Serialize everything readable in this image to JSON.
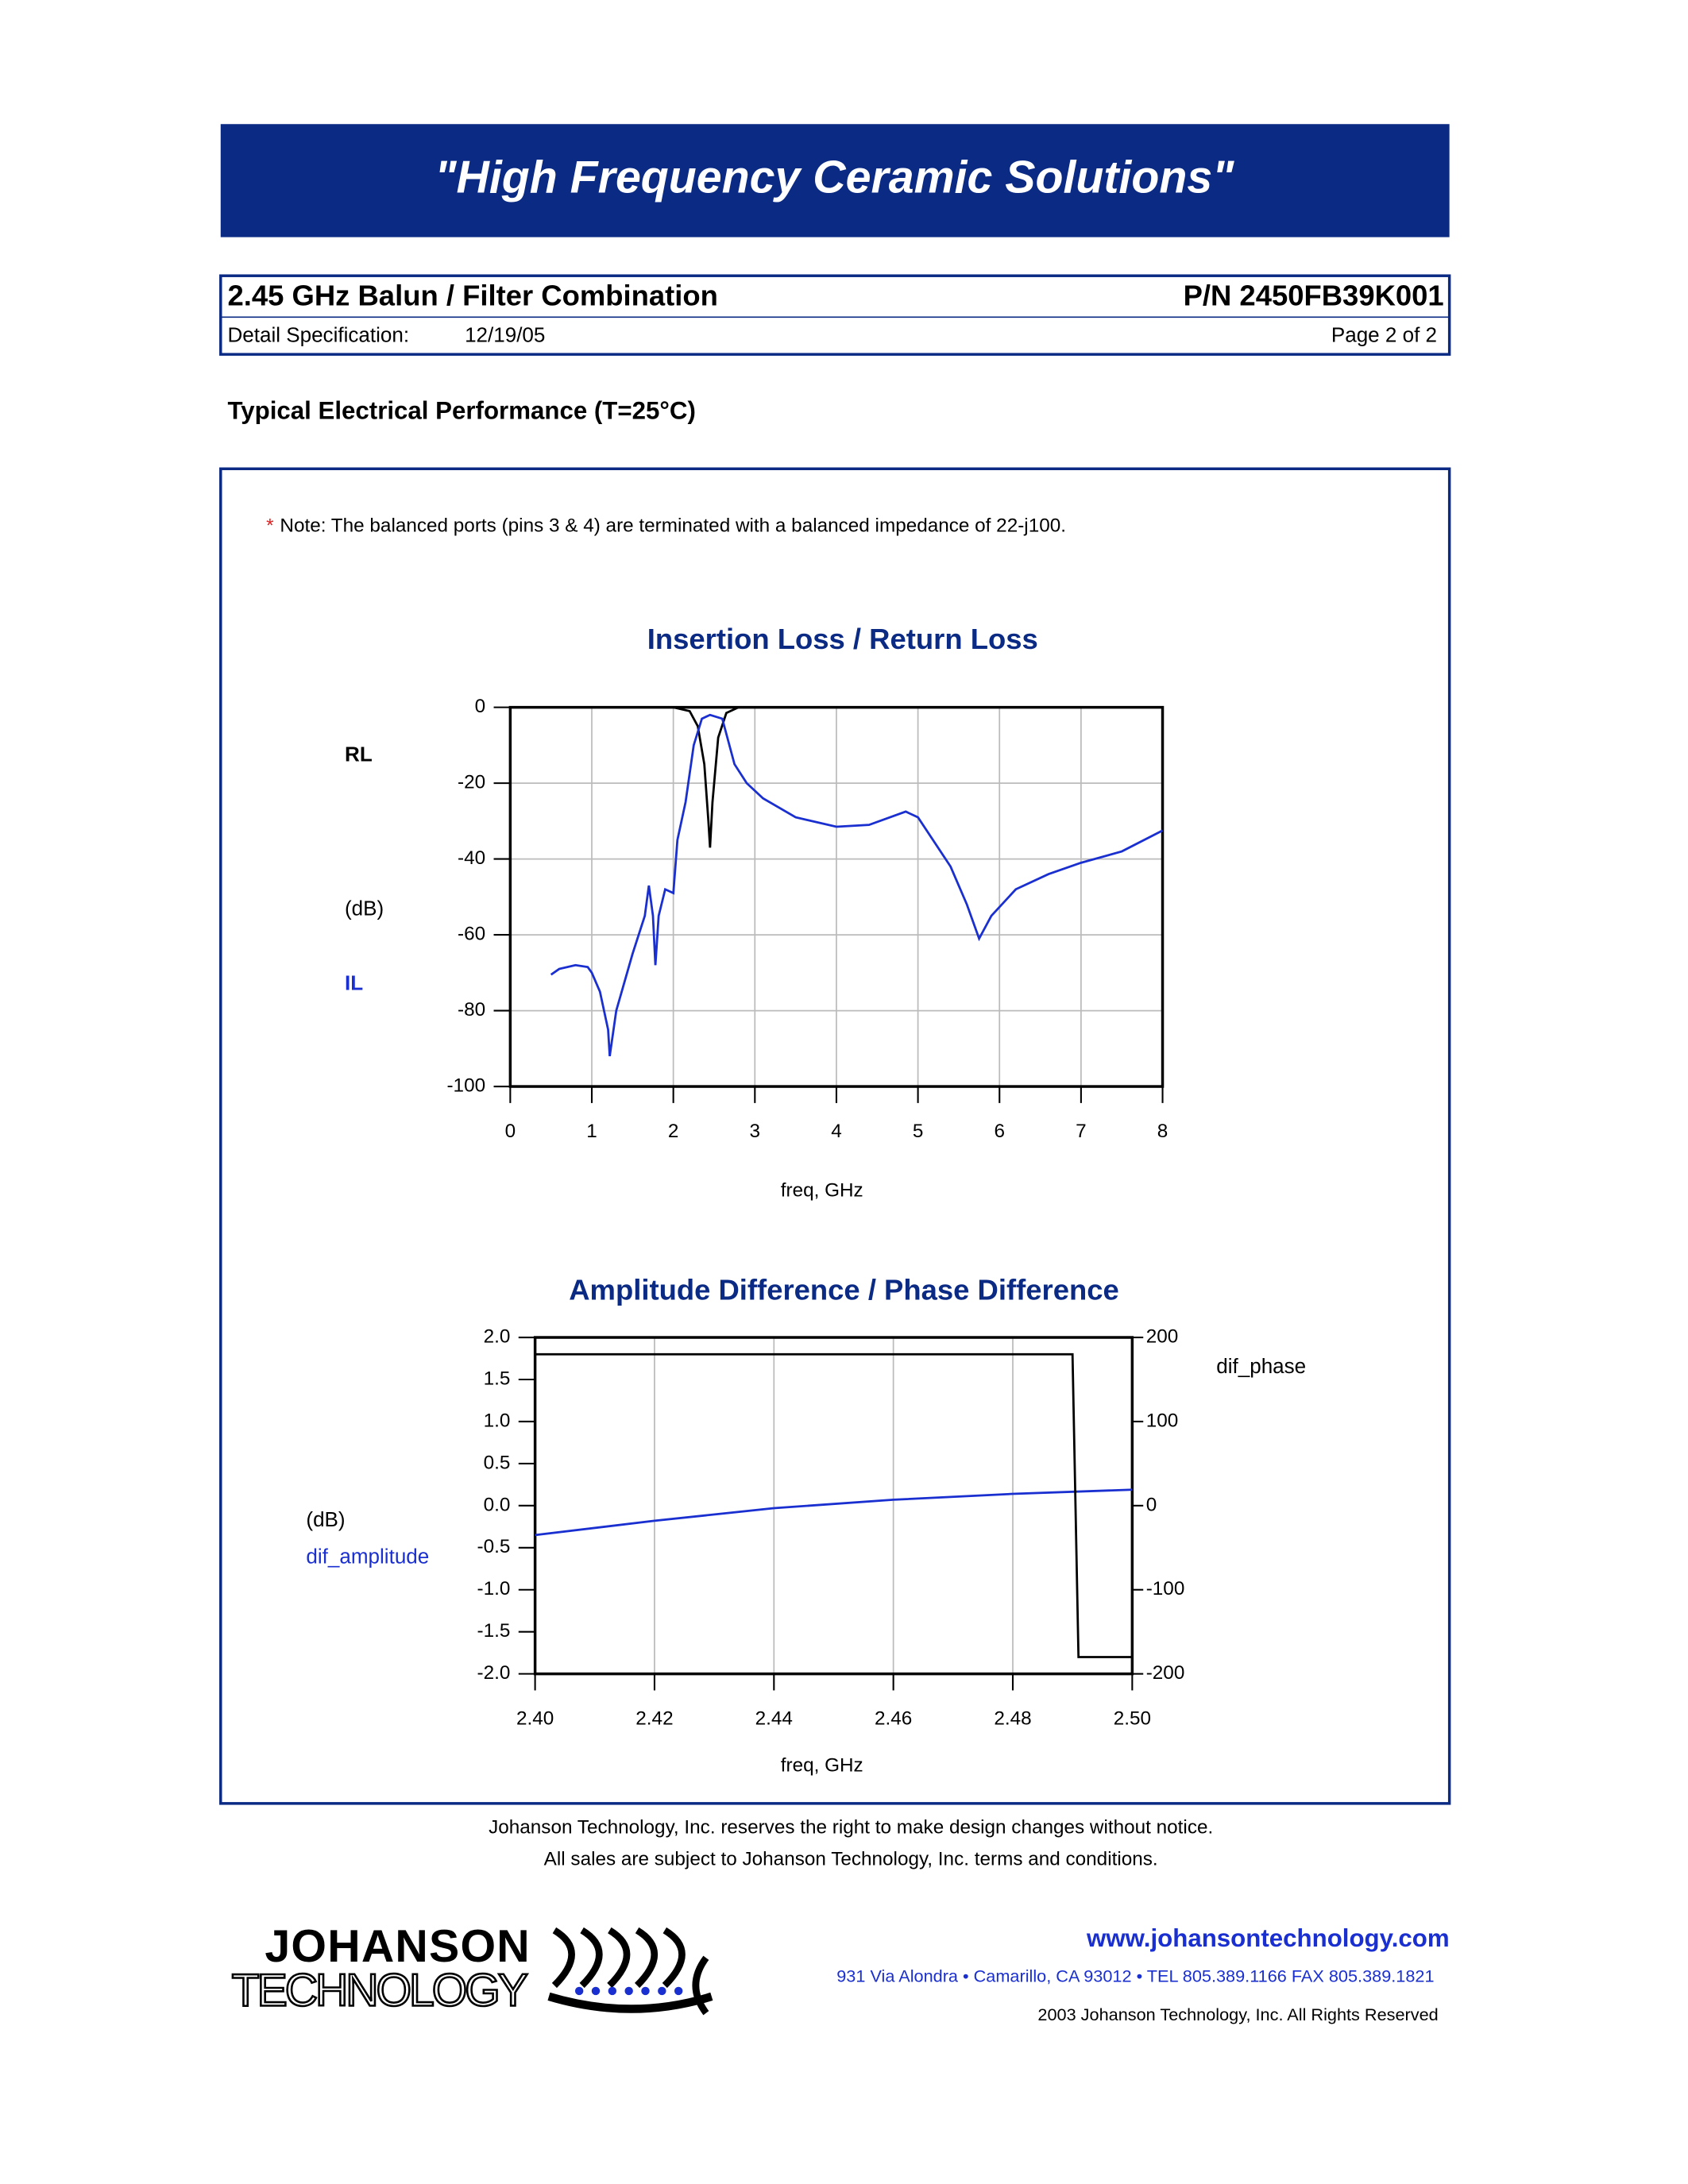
{
  "header": {
    "banner": "\"High Frequency Ceramic Solutions\""
  },
  "spec": {
    "title": "2.45 GHz Balun / Filter Combination",
    "part_number": "P/N 2450FB39K001",
    "detail_label": "Detail Specification:",
    "date": "12/19/05",
    "page": "Page 2 of 2"
  },
  "section_title": "Typical Electrical Performance (T=25°C)",
  "note": {
    "marker": "*",
    "text": "Note: The balanced ports (pins 3 & 4) are terminated with a balanced impedance of 22-j100."
  },
  "chart_data": [
    {
      "type": "line",
      "title": "Insertion Loss / Return Loss",
      "xlabel": "freq, GHz",
      "ylabel": "(dB)",
      "xlim": [
        0,
        8
      ],
      "ylim": [
        -100,
        0
      ],
      "xticks": [
        0,
        1,
        2,
        3,
        4,
        5,
        6,
        7,
        8
      ],
      "yticks": [
        0,
        -20,
        -40,
        -60,
        -80,
        -100
      ],
      "grid": true,
      "series": [
        {
          "name": "RL",
          "color": "#000000",
          "x": [
            2.0,
            2.2,
            2.3,
            2.38,
            2.43,
            2.45,
            2.48,
            2.55,
            2.65,
            2.8,
            8.0
          ],
          "values": [
            0,
            -1,
            -5,
            -15,
            -30,
            -37,
            -25,
            -8,
            -1.5,
            0,
            0
          ]
        },
        {
          "name": "IL",
          "color": "#1a2fd0",
          "x": [
            0.5,
            0.6,
            0.8,
            0.95,
            1.0,
            1.1,
            1.2,
            1.22,
            1.3,
            1.5,
            1.65,
            1.7,
            1.75,
            1.78,
            1.82,
            1.9,
            2.0,
            2.05,
            2.15,
            2.25,
            2.35,
            2.45,
            2.6,
            2.75,
            2.9,
            3.1,
            3.5,
            4.0,
            4.4,
            4.85,
            5.0,
            5.4,
            5.6,
            5.75,
            5.9,
            6.2,
            6.6,
            7.0,
            7.5,
            8.0
          ],
          "values": [
            -70.5,
            -69,
            -68,
            -68.5,
            -70,
            -75,
            -85,
            -92,
            -80,
            -65,
            -55,
            -47,
            -55,
            -68,
            -55,
            -48,
            -49,
            -35,
            -25,
            -10,
            -3,
            -2,
            -3,
            -15,
            -20,
            -24,
            -29,
            -31.5,
            -31,
            -27.5,
            -29,
            -42,
            -52,
            -61,
            -55,
            -48,
            -44,
            -41,
            -38,
            -32.5
          ]
        }
      ]
    },
    {
      "type": "line",
      "title": "Amplitude Difference / Phase Difference",
      "xlabel": "freq, GHz",
      "ylabel": "(dB)",
      "xlim": [
        2.4,
        2.5
      ],
      "ylim": [
        -2,
        2
      ],
      "y2lim": [
        -200,
        200
      ],
      "xticks": [
        {
          "value": 2.4,
          "label": "2.40"
        },
        {
          "value": 2.42,
          "label": "2.42"
        },
        {
          "value": 2.44,
          "label": "2.44"
        },
        {
          "value": 2.46,
          "label": "2.46"
        },
        {
          "value": 2.48,
          "label": "2.48"
        },
        {
          "value": 2.5,
          "label": "2.50"
        }
      ],
      "yticks": [
        {
          "value": 2,
          "label": "2.0"
        },
        {
          "value": 1.5,
          "label": "1.5"
        },
        {
          "value": 1,
          "label": "1.0"
        },
        {
          "value": 0.5,
          "label": "0.5"
        },
        {
          "value": 0,
          "label": "0.0"
        },
        {
          "value": -0.5,
          "label": "-0.5"
        },
        {
          "value": -1,
          "label": "-1.0"
        },
        {
          "value": -1.5,
          "label": "-1.5"
        },
        {
          "value": -2,
          "label": "-2.0"
        }
      ],
      "y2ticks": [
        200,
        100,
        0,
        -100,
        -200
      ],
      "grid": true,
      "series": [
        {
          "name": "dif_amplitude",
          "color": "#1a2fd0",
          "x": [
            2.4,
            2.42,
            2.44,
            2.46,
            2.48,
            2.5
          ],
          "values": [
            -0.35,
            -0.18,
            -0.03,
            0.07,
            0.14,
            0.19
          ]
        },
        {
          "name": "dif_phase",
          "color": "#000000",
          "axis": "y2",
          "x": [
            2.4,
            2.49,
            2.491,
            2.5
          ],
          "values": [
            180,
            180,
            -180,
            -180
          ]
        }
      ]
    }
  ],
  "footer": {
    "disclaimer_1": "Johanson Technology, Inc. reserves the right to make design changes without notice.",
    "disclaimer_2": "All sales are subject to Johanson Technology, Inc. terms and conditions."
  },
  "logo": {
    "line1": "JOHANSON",
    "line2": "TECHNOLOGY"
  },
  "contact": {
    "website": "www.johansontechnology.com",
    "address": "931 Via Alondra • Camarillo, CA 93012 • TEL 805.389.1166 FAX 805.389.1821",
    "copyright": "2003 Johanson Technology, Inc.  All Rights Reserved"
  }
}
